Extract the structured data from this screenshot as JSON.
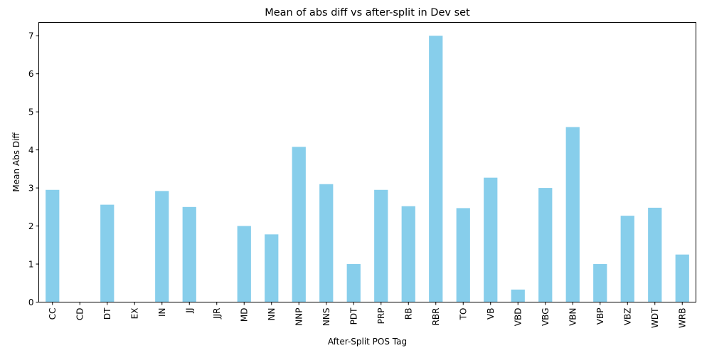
{
  "chart_data": {
    "type": "bar",
    "title": "Mean of abs diff vs after-split in Dev set",
    "xlabel": "After-Split POS Tag",
    "ylabel": "Mean Abs Diff",
    "categories": [
      "CC",
      "CD",
      "DT",
      "EX",
      "IN",
      "JJ",
      "JJR",
      "MD",
      "NN",
      "NNP",
      "NNS",
      "PDT",
      "PRP",
      "RB",
      "RBR",
      "TO",
      "VB",
      "VBD",
      "VBG",
      "VBN",
      "VBP",
      "VBZ",
      "WDT",
      "WRB"
    ],
    "values": [
      2.95,
      0,
      2.56,
      0,
      2.92,
      2.5,
      0,
      2.0,
      1.78,
      4.08,
      3.1,
      1.0,
      2.95,
      2.52,
      7.0,
      2.47,
      3.27,
      0.33,
      3.0,
      4.6,
      1.0,
      2.27,
      2.48,
      1.25
    ],
    "ylim": [
      0,
      7.35
    ],
    "yticks": [
      0,
      1,
      2,
      3,
      4,
      5,
      6,
      7
    ],
    "grid": false,
    "bar_color": "#87CEEB",
    "axis_color": "#000000"
  }
}
